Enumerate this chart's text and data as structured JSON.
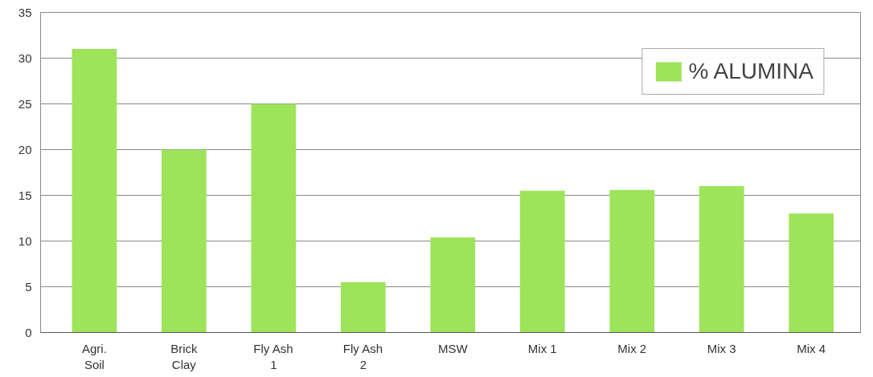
{
  "chart_data": {
    "type": "bar",
    "categories": [
      "Agri.\nSoil",
      "Brick\nClay",
      "Fly Ash\n1",
      "Fly Ash\n2",
      "MSW",
      "Mix 1",
      "Mix 2",
      "Mix 3",
      "Mix 4"
    ],
    "series": [
      {
        "name": "% ALUMINA",
        "color": "#9ee45a",
        "values": [
          31,
          20,
          25,
          5.5,
          10.4,
          15.5,
          15.6,
          16,
          13
        ]
      }
    ],
    "ylim": [
      0,
      35
    ],
    "yticks": [
      0,
      5,
      10,
      15,
      20,
      25,
      30,
      35
    ],
    "grid": "y",
    "legend": "top right"
  }
}
